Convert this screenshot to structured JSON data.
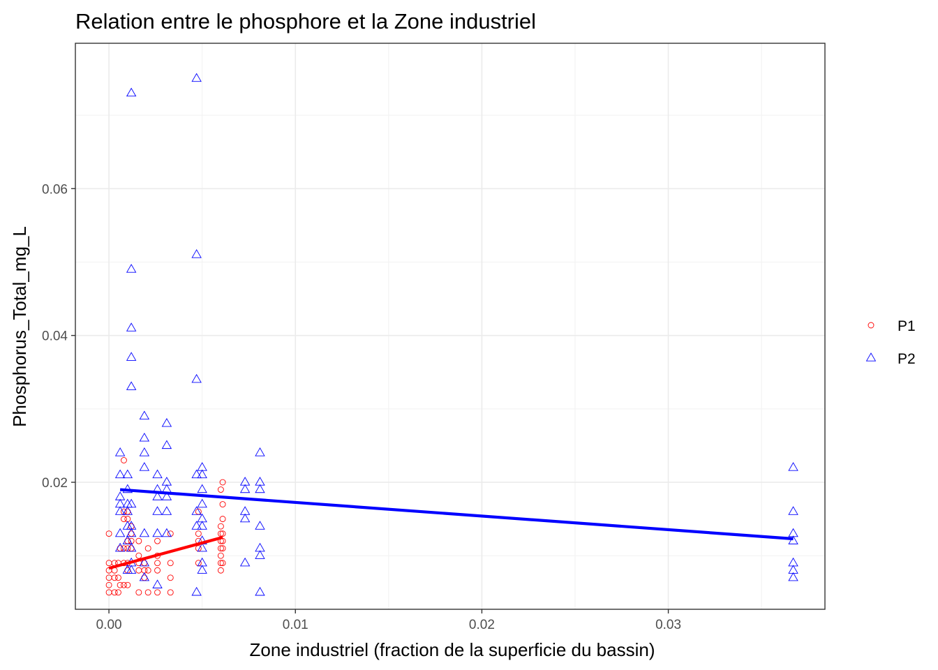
{
  "chart_data": {
    "type": "scatter",
    "title": "Relation entre le phosphore et la Zone industriel",
    "xlabel": "Zone industriel (fraction de la superficie du bassin)",
    "ylabel": "Phosphorus_Total_mg_L",
    "xlim": [
      -0.0018,
      0.0384
    ],
    "ylim": [
      0.0027,
      0.0798
    ],
    "x_ticks": [
      0.0,
      0.01,
      0.02,
      0.03
    ],
    "x_tick_labels": [
      "0.00",
      "0.01",
      "0.02",
      "0.03"
    ],
    "y_ticks": [
      0.02,
      0.04,
      0.06
    ],
    "y_tick_labels": [
      "0.02",
      "0.04",
      "0.06"
    ],
    "grid": true,
    "legend_position": "right",
    "series": [
      {
        "name": "P1",
        "marker": "circle",
        "color": "#FF0000",
        "points": [
          [
            0.0,
            0.013
          ],
          [
            0.0,
            0.009
          ],
          [
            0.0,
            0.008
          ],
          [
            0.0,
            0.007
          ],
          [
            0.0,
            0.006
          ],
          [
            0.0,
            0.005
          ],
          [
            0.0003,
            0.009
          ],
          [
            0.0003,
            0.008
          ],
          [
            0.0003,
            0.007
          ],
          [
            0.0003,
            0.005
          ],
          [
            0.0005,
            0.009
          ],
          [
            0.0005,
            0.007
          ],
          [
            0.0005,
            0.005
          ],
          [
            0.0006,
            0.011
          ],
          [
            0.0006,
            0.006
          ],
          [
            0.0008,
            0.023
          ],
          [
            0.0008,
            0.016
          ],
          [
            0.0008,
            0.015
          ],
          [
            0.0008,
            0.011
          ],
          [
            0.0008,
            0.009
          ],
          [
            0.0008,
            0.006
          ],
          [
            0.001,
            0.016
          ],
          [
            0.001,
            0.015
          ],
          [
            0.001,
            0.012
          ],
          [
            0.001,
            0.011
          ],
          [
            0.001,
            0.009
          ],
          [
            0.001,
            0.008
          ],
          [
            0.001,
            0.006
          ],
          [
            0.0012,
            0.014
          ],
          [
            0.0012,
            0.013
          ],
          [
            0.0012,
            0.012
          ],
          [
            0.0012,
            0.011
          ],
          [
            0.0016,
            0.012
          ],
          [
            0.0016,
            0.01
          ],
          [
            0.0016,
            0.009
          ],
          [
            0.0016,
            0.008
          ],
          [
            0.0016,
            0.005
          ],
          [
            0.0019,
            0.009
          ],
          [
            0.0019,
            0.008
          ],
          [
            0.0019,
            0.007
          ],
          [
            0.0021,
            0.011
          ],
          [
            0.0021,
            0.008
          ],
          [
            0.0021,
            0.005
          ],
          [
            0.0026,
            0.012
          ],
          [
            0.0026,
            0.01
          ],
          [
            0.0026,
            0.009
          ],
          [
            0.0026,
            0.008
          ],
          [
            0.0026,
            0.005
          ],
          [
            0.0033,
            0.013
          ],
          [
            0.0033,
            0.009
          ],
          [
            0.0033,
            0.007
          ],
          [
            0.0033,
            0.005
          ],
          [
            0.0048,
            0.016
          ],
          [
            0.0048,
            0.013
          ],
          [
            0.0048,
            0.012
          ],
          [
            0.0048,
            0.011
          ],
          [
            0.0048,
            0.009
          ],
          [
            0.006,
            0.019
          ],
          [
            0.006,
            0.014
          ],
          [
            0.006,
            0.013
          ],
          [
            0.006,
            0.012
          ],
          [
            0.006,
            0.011
          ],
          [
            0.006,
            0.01
          ],
          [
            0.006,
            0.009
          ],
          [
            0.006,
            0.008
          ],
          [
            0.0061,
            0.02
          ],
          [
            0.0061,
            0.017
          ],
          [
            0.0061,
            0.015
          ],
          [
            0.0061,
            0.013
          ],
          [
            0.0061,
            0.012
          ],
          [
            0.0061,
            0.011
          ],
          [
            0.0061,
            0.009
          ]
        ],
        "fit": [
          [
            0.0,
            0.0083
          ],
          [
            0.0061,
            0.0125
          ]
        ]
      },
      {
        "name": "P2",
        "marker": "triangle",
        "color": "#0000FF",
        "points": [
          [
            0.0006,
            0.024
          ],
          [
            0.0006,
            0.021
          ],
          [
            0.0006,
            0.018
          ],
          [
            0.0006,
            0.017
          ],
          [
            0.0006,
            0.016
          ],
          [
            0.0006,
            0.013
          ],
          [
            0.0006,
            0.011
          ],
          [
            0.001,
            0.021
          ],
          [
            0.001,
            0.019
          ],
          [
            0.001,
            0.017
          ],
          [
            0.001,
            0.016
          ],
          [
            0.001,
            0.014
          ],
          [
            0.001,
            0.012
          ],
          [
            0.001,
            0.008
          ],
          [
            0.0012,
            0.073
          ],
          [
            0.0012,
            0.049
          ],
          [
            0.0012,
            0.041
          ],
          [
            0.0012,
            0.037
          ],
          [
            0.0012,
            0.033
          ],
          [
            0.0012,
            0.017
          ],
          [
            0.0012,
            0.014
          ],
          [
            0.0012,
            0.013
          ],
          [
            0.0012,
            0.011
          ],
          [
            0.0012,
            0.009
          ],
          [
            0.0012,
            0.008
          ],
          [
            0.0019,
            0.029
          ],
          [
            0.0019,
            0.026
          ],
          [
            0.0019,
            0.024
          ],
          [
            0.0019,
            0.022
          ],
          [
            0.0019,
            0.013
          ],
          [
            0.0019,
            0.009
          ],
          [
            0.0019,
            0.007
          ],
          [
            0.0026,
            0.021
          ],
          [
            0.0026,
            0.019
          ],
          [
            0.0026,
            0.018
          ],
          [
            0.0026,
            0.016
          ],
          [
            0.0026,
            0.013
          ],
          [
            0.0026,
            0.006
          ],
          [
            0.0031,
            0.028
          ],
          [
            0.0031,
            0.025
          ],
          [
            0.0031,
            0.02
          ],
          [
            0.0031,
            0.019
          ],
          [
            0.0031,
            0.018
          ],
          [
            0.0031,
            0.016
          ],
          [
            0.0031,
            0.013
          ],
          [
            0.0047,
            0.075
          ],
          [
            0.0047,
            0.051
          ],
          [
            0.0047,
            0.034
          ],
          [
            0.0047,
            0.021
          ],
          [
            0.0047,
            0.016
          ],
          [
            0.0047,
            0.014
          ],
          [
            0.0047,
            0.005
          ],
          [
            0.005,
            0.022
          ],
          [
            0.005,
            0.021
          ],
          [
            0.005,
            0.019
          ],
          [
            0.005,
            0.017
          ],
          [
            0.005,
            0.015
          ],
          [
            0.005,
            0.014
          ],
          [
            0.005,
            0.012
          ],
          [
            0.005,
            0.011
          ],
          [
            0.005,
            0.009
          ],
          [
            0.005,
            0.008
          ],
          [
            0.0073,
            0.02
          ],
          [
            0.0073,
            0.019
          ],
          [
            0.0073,
            0.016
          ],
          [
            0.0073,
            0.015
          ],
          [
            0.0073,
            0.009
          ],
          [
            0.0081,
            0.024
          ],
          [
            0.0081,
            0.02
          ],
          [
            0.0081,
            0.019
          ],
          [
            0.0081,
            0.014
          ],
          [
            0.0081,
            0.011
          ],
          [
            0.0081,
            0.01
          ],
          [
            0.0081,
            0.005
          ],
          [
            0.0367,
            0.022
          ],
          [
            0.0367,
            0.016
          ],
          [
            0.0367,
            0.013
          ],
          [
            0.0367,
            0.012
          ],
          [
            0.0367,
            0.009
          ],
          [
            0.0367,
            0.008
          ],
          [
            0.0367,
            0.007
          ]
        ],
        "fit": [
          [
            0.0006,
            0.019
          ],
          [
            0.0367,
            0.0123
          ]
        ]
      }
    ]
  }
}
